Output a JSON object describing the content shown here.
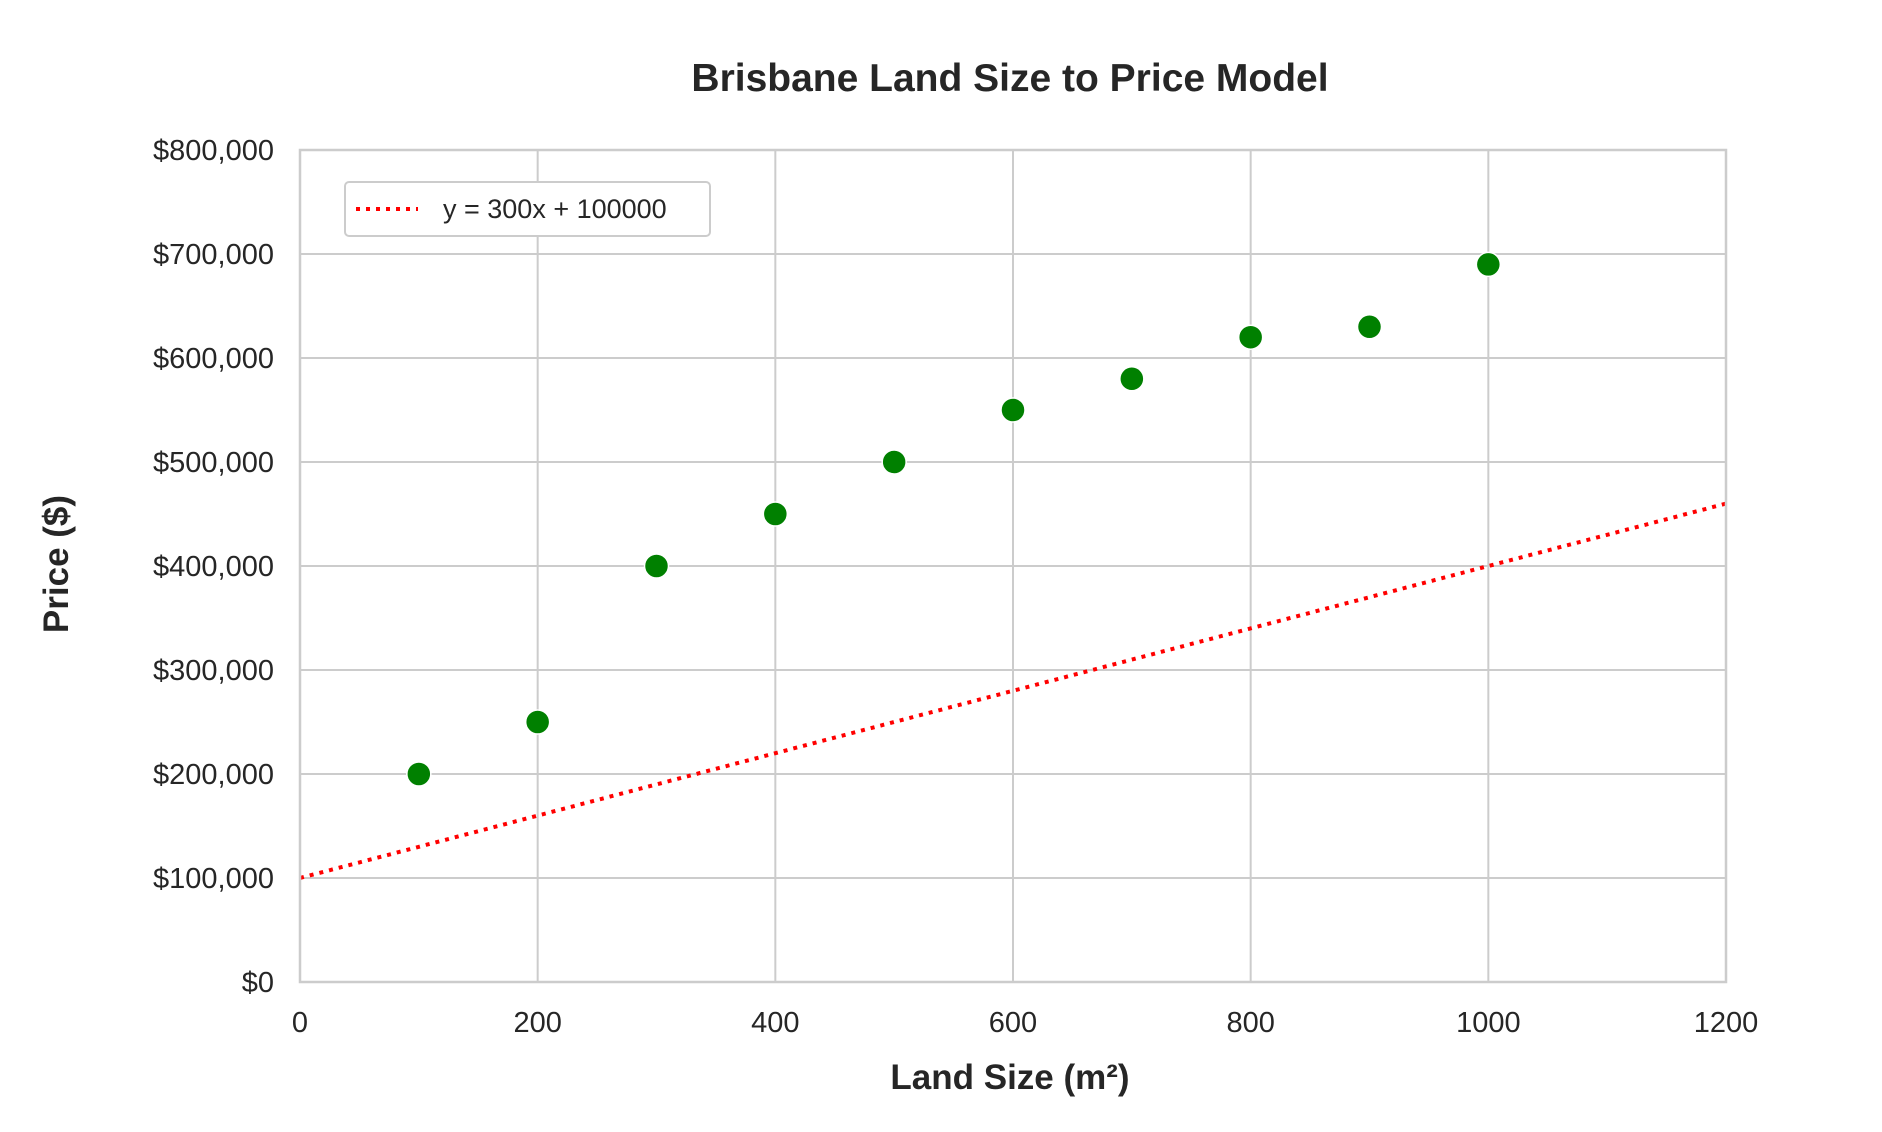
{
  "chart_data": {
    "type": "scatter",
    "title": "Brisbane Land Size to Price Model",
    "xlabel": "Land Size (m²)",
    "ylabel": "Price ($)",
    "xlim": [
      0,
      1200
    ],
    "ylim": [
      0,
      800000
    ],
    "xticks": [
      0,
      200,
      400,
      600,
      800,
      1000,
      1200
    ],
    "xtick_labels": [
      "0",
      "200",
      "400",
      "600",
      "800",
      "1000",
      "1200"
    ],
    "yticks": [
      0,
      100000,
      200000,
      300000,
      400000,
      500000,
      600000,
      700000,
      800000
    ],
    "ytick_labels": [
      "$0",
      "$100,000",
      "$200,000",
      "$300,000",
      "$400,000",
      "$500,000",
      "$600,000",
      "$700,000",
      "$800,000"
    ],
    "grid": true,
    "legend_position": "top-left",
    "series": [
      {
        "kind": "scatter",
        "color": "#008000",
        "x": [
          100,
          200,
          300,
          400,
          500,
          600,
          700,
          800,
          900,
          1000
        ],
        "y": [
          200000,
          250000,
          400000,
          450000,
          500000,
          550000,
          580000,
          620000,
          630000,
          690000
        ]
      },
      {
        "kind": "line",
        "name": "y = 300x + 100000",
        "style": "dotted",
        "color": "#ff0000",
        "x": [
          0,
          1200
        ],
        "y": [
          100000,
          460000
        ]
      }
    ]
  }
}
